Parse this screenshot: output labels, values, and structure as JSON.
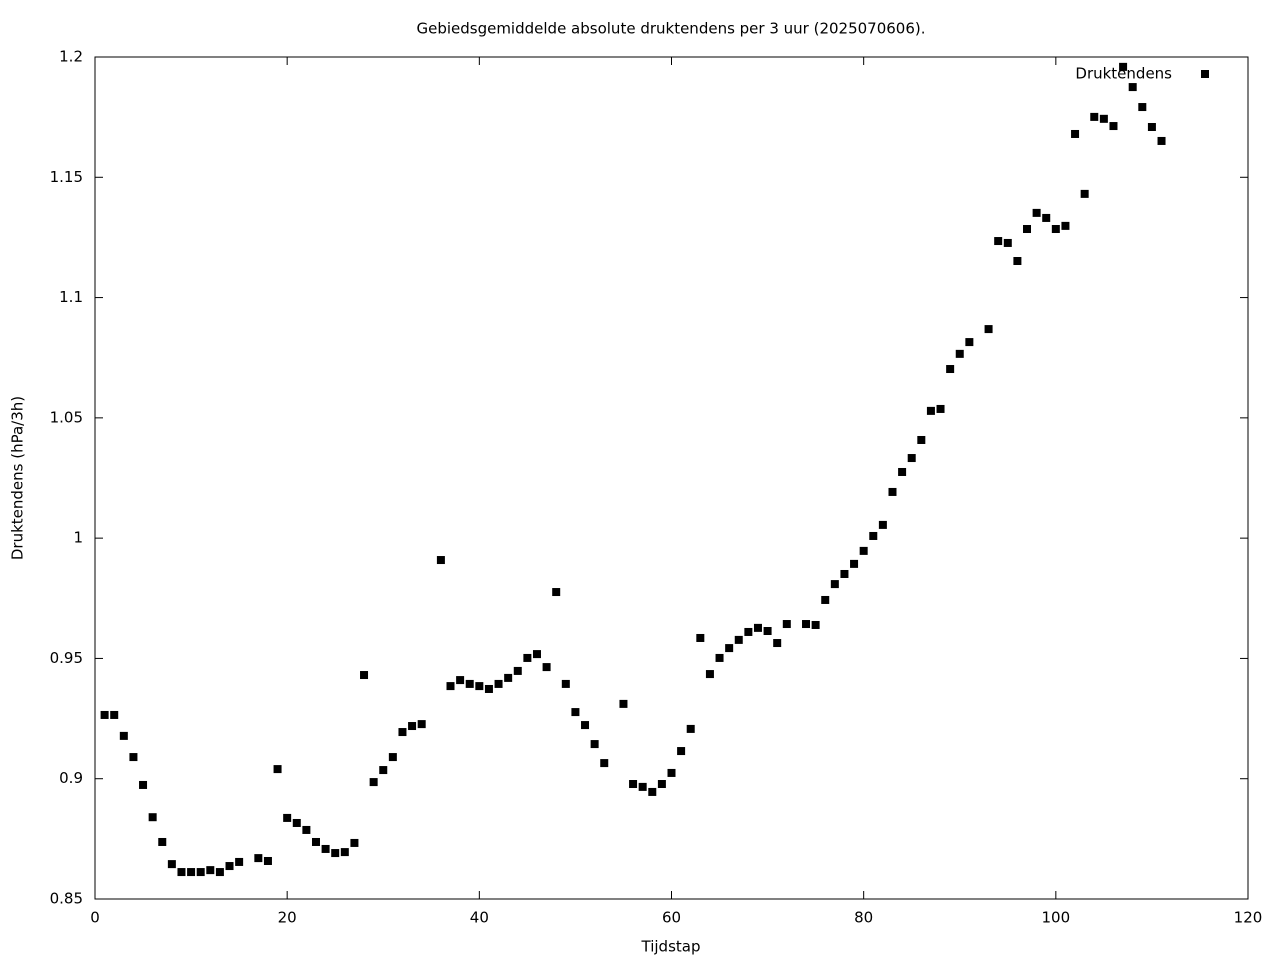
{
  "chart_data": {
    "type": "scatter",
    "title": "Gebiedsgemiddelde absolute druktendens per 3 uur (2025070606).",
    "x_label": "Tijdstap",
    "y_label": "Druktendens (hPa/3h)",
    "xlim": [
      0,
      120
    ],
    "xticks": [
      0,
      20,
      40,
      60,
      80,
      100,
      120
    ],
    "ylim": [
      0.85,
      1.2
    ],
    "yticks": [
      0.85,
      0.9,
      0.95,
      1,
      1.05,
      1.1,
      1.15,
      1.2
    ],
    "legend": "top-right",
    "grid": false,
    "series": [
      {
        "name": "Druktendens",
        "color": "#000000",
        "x": [
          1,
          2,
          3,
          4,
          5,
          6,
          7,
          8,
          9,
          10,
          11,
          12,
          13,
          14,
          15,
          17,
          18,
          19,
          20,
          21,
          22,
          23,
          24,
          25,
          26,
          27,
          28,
          29,
          30,
          31,
          32,
          33,
          34,
          36,
          37,
          38,
          39,
          40,
          41,
          42,
          43,
          44,
          45,
          46,
          47,
          48,
          49,
          50,
          51,
          52,
          53,
          55,
          56,
          57,
          58,
          59,
          60,
          61,
          62,
          63,
          64,
          65,
          66,
          67,
          68,
          69,
          70,
          71,
          72,
          74,
          75,
          76,
          77,
          78,
          79,
          80,
          81,
          82,
          83,
          84,
          85,
          86,
          87,
          88,
          89,
          90,
          91,
          93,
          94,
          95,
          96,
          97,
          98,
          99,
          100,
          101,
          102,
          103,
          104,
          105,
          106,
          107,
          108,
          109,
          110,
          111
        ],
        "values": [
          0.9265,
          0.9265,
          0.9178,
          0.909,
          0.8974,
          0.884,
          0.8737,
          0.8645,
          0.8612,
          0.8612,
          0.8612,
          0.862,
          0.8612,
          0.8637,
          0.8654,
          0.867,
          0.8658,
          0.904,
          0.8837,
          0.8816,
          0.8787,
          0.8737,
          0.8708,
          0.8691,
          0.8695,
          0.8733,
          0.9431,
          0.8986,
          0.9036,
          0.909,
          0.9194,
          0.9219,
          0.9227,
          0.9909,
          0.9385,
          0.941,
          0.9394,
          0.9385,
          0.9373,
          0.9394,
          0.9419,
          0.9448,
          0.9502,
          0.9518,
          0.9464,
          0.9776,
          0.9394,
          0.9277,
          0.9223,
          0.9144,
          0.9065,
          0.9311,
          0.8978,
          0.8966,
          0.8945,
          0.8978,
          0.9024,
          0.9115,
          0.9207,
          0.9585,
          0.9435,
          0.9502,
          0.9543,
          0.9577,
          0.961,
          0.9627,
          0.9614,
          0.9564,
          0.9643,
          0.9643,
          0.9639,
          0.9743,
          0.9809,
          0.9851,
          0.9893,
          0.9947,
          1.0009,
          1.0055,
          1.0192,
          1.0275,
          1.0333,
          1.0408,
          1.0529,
          1.0537,
          1.0703,
          1.0766,
          1.0815,
          1.0869,
          1.1235,
          1.1227,
          1.1152,
          1.1285,
          1.1352,
          1.1331,
          1.1285,
          1.1298,
          1.168,
          1.1431,
          1.1751,
          1.1743,
          1.1713,
          1.1959,
          1.1875,
          1.1792,
          1.1709,
          1.1651
        ]
      }
    ]
  }
}
